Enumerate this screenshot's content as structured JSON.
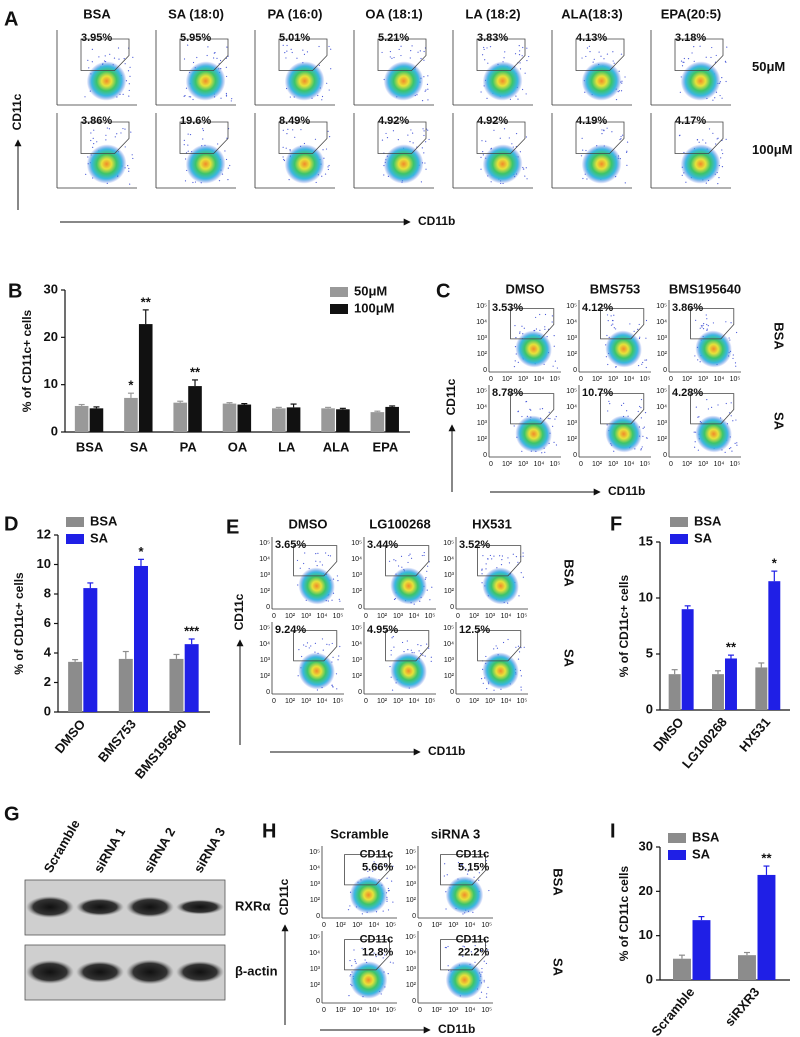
{
  "flow_axis_ticks": [
    "0",
    "10²",
    "10³",
    "10⁴",
    "10⁵"
  ],
  "flow_panels": [
    {
      "letter": "A",
      "columns": [
        "BSA",
        "SA (18:0)",
        "PA (16:0)",
        "OA (18:1)",
        "LA (18:2)",
        "ALA(18:3)",
        "EPA(20:5)"
      ],
      "rows": [
        "50μM",
        "100μM"
      ],
      "gates": [
        [
          "3.95%",
          "5.95%",
          "5.01%",
          "5.21%",
          "3.83%",
          "4.13%",
          "3.18%"
        ],
        [
          "3.86%",
          "19.6%",
          "8.49%",
          "4.92%",
          "4.92%",
          "4.19%",
          "4.17%"
        ]
      ],
      "y_label": "CD11c",
      "x_label": "CD11b"
    },
    {
      "letter": "C",
      "columns": [
        "DMSO",
        "BMS753",
        "BMS195640"
      ],
      "rows": [
        "BSA",
        "SA"
      ],
      "gates": [
        [
          "3.53%",
          "4.12%",
          "3.86%"
        ],
        [
          "8.78%",
          "10.7%",
          "4.28%"
        ]
      ],
      "y_label": "CD11c",
      "x_label": "CD11b"
    },
    {
      "letter": "E",
      "columns": [
        "DMSO",
        "LG100268",
        "HX531"
      ],
      "rows": [
        "BSA",
        "SA"
      ],
      "gates": [
        [
          "3.65%",
          "3.44%",
          "3.52%"
        ],
        [
          "9.24%",
          "4.95%",
          "12.5%"
        ]
      ],
      "y_label": "CD11c",
      "x_label": "CD11b"
    },
    {
      "letter": "H",
      "columns": [
        "Scramble",
        "siRNA 3"
      ],
      "rows": [
        "BSA",
        "SA"
      ],
      "gate_name": "CD11c",
      "gates": [
        [
          "5.66%",
          "5.15%"
        ],
        [
          "12.8%",
          "22.2%"
        ]
      ],
      "y_label": "CD11c",
      "x_label": "CD11b"
    }
  ],
  "blot": {
    "letter": "G",
    "lanes": [
      "Scramble",
      "siRNA 1",
      "siRNA 2",
      "siRNA 3"
    ],
    "bands": [
      "RXRα",
      "β-actin"
    ]
  },
  "chart_data": [
    {
      "type": "bar",
      "letter": "B",
      "y_label": "% of CD11c+ cells",
      "categories": [
        "BSA",
        "SA",
        "PA",
        "OA",
        "LA",
        "ALA",
        "EPA"
      ],
      "series": [
        {
          "name": "50μM",
          "color": "#999999",
          "values": [
            5.5,
            7.2,
            6.2,
            6.0,
            5.0,
            5.0,
            4.2
          ],
          "errors": [
            0.3,
            1.0,
            0.3,
            0.2,
            0.2,
            0.2,
            0.2
          ],
          "significance": [
            null,
            "*",
            null,
            null,
            null,
            null,
            null
          ]
        },
        {
          "name": "100μM",
          "color": "#111111",
          "values": [
            5.0,
            22.8,
            9.7,
            5.8,
            5.2,
            4.8,
            5.3
          ],
          "errors": [
            0.3,
            3.0,
            1.3,
            0.2,
            0.7,
            0.2,
            0.2
          ],
          "significance": [
            null,
            "**",
            "**",
            null,
            null,
            null,
            null
          ]
        }
      ],
      "ylim": [
        0,
        30
      ],
      "yticks": [
        0,
        10,
        20,
        30
      ]
    },
    {
      "type": "bar",
      "letter": "D",
      "y_label": "% of CD11c+ cells",
      "categories": [
        "DMSO",
        "BMS753",
        "BMS195640"
      ],
      "series": [
        {
          "name": "BSA",
          "color": "#8c8c8c",
          "values": [
            3.4,
            3.6,
            3.6
          ],
          "errors": [
            0.15,
            0.5,
            0.3
          ],
          "significance": [
            null,
            null,
            null
          ]
        },
        {
          "name": "SA",
          "color": "#1f1fe6",
          "values": [
            8.4,
            9.9,
            4.6
          ],
          "errors": [
            0.35,
            0.45,
            0.35
          ],
          "significance": [
            null,
            "*",
            "***"
          ]
        }
      ],
      "ylim": [
        0,
        12
      ],
      "yticks": [
        0,
        2,
        4,
        6,
        8,
        10,
        12
      ]
    },
    {
      "type": "bar",
      "letter": "F",
      "y_label": "% of CD11c+ cells",
      "categories": [
        "DMSO",
        "LG100268",
        "HX531"
      ],
      "series": [
        {
          "name": "BSA",
          "color": "#8c8c8c",
          "values": [
            3.2,
            3.2,
            3.8
          ],
          "errors": [
            0.4,
            0.3,
            0.4
          ],
          "significance": [
            null,
            null,
            null
          ]
        },
        {
          "name": "SA",
          "color": "#1f1fe6",
          "values": [
            9.0,
            4.6,
            11.5
          ],
          "errors": [
            0.3,
            0.3,
            0.9
          ],
          "significance": [
            null,
            "**",
            "*"
          ]
        }
      ],
      "ylim": [
        0,
        15
      ],
      "yticks": [
        0,
        5,
        10,
        15
      ]
    },
    {
      "type": "bar",
      "letter": "I",
      "y_label": "% of CD11c cells",
      "categories": [
        "Scramble",
        "siRXR3"
      ],
      "series": [
        {
          "name": "BSA",
          "color": "#8c8c8c",
          "values": [
            4.8,
            5.6
          ],
          "errors": [
            0.8,
            0.6
          ],
          "significance": [
            null,
            null
          ]
        },
        {
          "name": "SA",
          "color": "#1f1fe6",
          "values": [
            13.5,
            23.7
          ],
          "errors": [
            0.8,
            2.0
          ],
          "significance": [
            null,
            "**"
          ]
        }
      ],
      "ylim": [
        0,
        30
      ],
      "yticks": [
        0,
        10,
        20,
        30
      ]
    }
  ]
}
